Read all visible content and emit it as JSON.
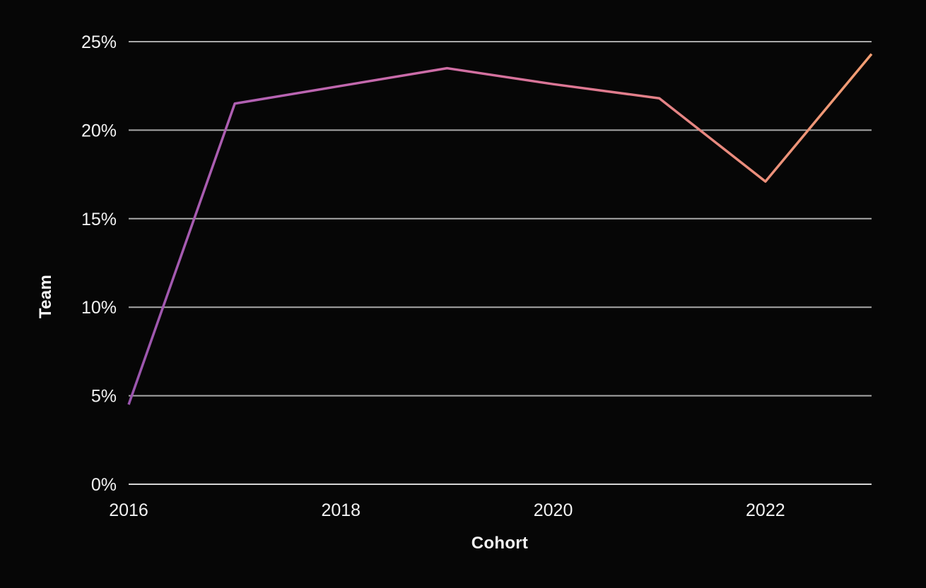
{
  "chart_data": {
    "type": "line",
    "title": "",
    "xlabel": "Cohort",
    "ylabel": "Team",
    "x": [
      2016,
      2017,
      2018,
      2019,
      2020,
      2021,
      2022,
      2023
    ],
    "series": [
      {
        "name": "Team",
        "values": [
          4.5,
          21.5,
          22.5,
          23.5,
          22.6,
          21.8,
          17.1,
          24.3
        ]
      }
    ],
    "xlim": [
      2016,
      2023
    ],
    "ylim": [
      0,
      25
    ],
    "xticks": [
      2016,
      2018,
      2020,
      2022
    ],
    "xtick_labels": [
      "2016",
      "2018",
      "2020",
      "2022"
    ],
    "yticks": [
      0,
      5,
      10,
      15,
      20,
      25
    ],
    "ytick_labels": [
      "0%",
      "5%",
      "10%",
      "15%",
      "20%",
      "25%"
    ],
    "grid": true,
    "legend": false,
    "background_color": "#060606",
    "gridline_color": "#a8a8a8",
    "baseline_color": "#d5d5d5",
    "text_color": "#f2f2f2",
    "line_gradient": [
      "#9a55ae",
      "#b763b3",
      "#cc6ca7",
      "#dd7793",
      "#e98a7e",
      "#f29e72"
    ],
    "line_width": 3.5
  }
}
